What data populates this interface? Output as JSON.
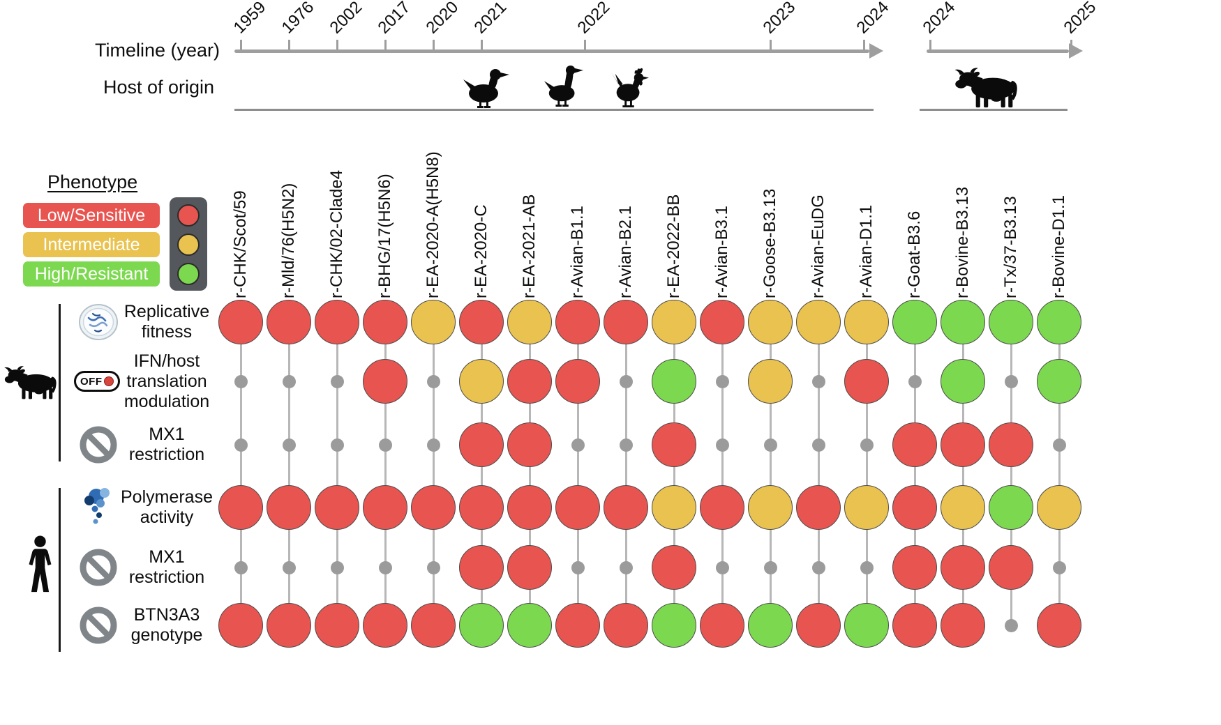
{
  "colors": {
    "red": "#e85450",
    "yellow": "#e9c24f",
    "green": "#7cd94f",
    "dot_gray": "#9b9b9b",
    "connector_gray": "#b7b7b7",
    "axis_gray": "#9e9e9e"
  },
  "icons": {
    "off_switch_label": "OFF"
  },
  "chart_data": {
    "type": "heatmap",
    "timeline": {
      "label": "Timeline (year)",
      "host_label": "Host of origin",
      "avian_axis": {
        "years": [
          "1959",
          "1976",
          "2002",
          "2017",
          "2020",
          "2021",
          "2022",
          "2023",
          "2024"
        ],
        "hosts": [
          "duck",
          "goose",
          "chicken"
        ]
      },
      "bovine_axis": {
        "years": [
          "2024",
          "2025"
        ],
        "hosts": [
          "cow"
        ]
      }
    },
    "legend": {
      "heading": "Phenotype",
      "entries": [
        {
          "label": "Low/Sensitive",
          "color": "red"
        },
        {
          "label": "Intermediate",
          "color": "yellow"
        },
        {
          "label": "High/Resistant",
          "color": "green"
        }
      ]
    },
    "columns": [
      "r-CHK/Scot/59",
      "r-Mld/76(H5N2)",
      "r-CHK/02-Clade4",
      "r-BHG/17(H5N6)",
      "r-EA-2020-A(H5N8)",
      "r-EA-2020-C",
      "r-EA-2021-AB",
      "r-Avian-B1.1",
      "r-Avian-B2.1",
      "r-EA-2022-BB",
      "r-Avian-B3.1",
      "r-Goose-B3.13",
      "r-Avian-EuDG",
      "r-Avian-D1.1",
      "r-Goat-B3.6",
      "r-Bovine-B3.13",
      "r-Tx/37-B3.13",
      "r-Bovine-D1.1"
    ],
    "row_groups": [
      {
        "host": "bovine",
        "rows": [
          {
            "label": "Replicative fitness",
            "icon": "petri-dish"
          },
          {
            "label": "IFN/host translation modulation",
            "icon": "off-switch"
          },
          {
            "label": "MX1 restriction",
            "icon": "no-entry"
          }
        ]
      },
      {
        "host": "human",
        "rows": [
          {
            "label": "Polymerase activity",
            "icon": "polymerase"
          },
          {
            "label": "MX1 restriction",
            "icon": "no-entry"
          },
          {
            "label": "BTN3A3 genotype",
            "icon": "no-entry"
          }
        ]
      }
    ],
    "values": [
      [
        "red",
        "red",
        "red",
        "red",
        "yellow",
        "red",
        "yellow",
        "red",
        "red",
        "yellow",
        "red",
        "yellow",
        "yellow",
        "yellow",
        "green",
        "green",
        "green",
        "green"
      ],
      [
        "dot",
        "dot",
        "dot",
        "red",
        "dot",
        "yellow",
        "red",
        "red",
        "dot",
        "green",
        "dot",
        "yellow",
        "dot",
        "red",
        "dot",
        "green",
        "dot",
        "green"
      ],
      [
        "dot",
        "dot",
        "dot",
        "dot",
        "dot",
        "red",
        "red",
        "dot",
        "dot",
        "red",
        "dot",
        "dot",
        "dot",
        "dot",
        "red",
        "red",
        "red",
        "dot"
      ],
      [
        "red",
        "red",
        "red",
        "red",
        "red",
        "red",
        "red",
        "red",
        "red",
        "yellow",
        "red",
        "yellow",
        "red",
        "yellow",
        "red",
        "yellow",
        "green",
        "yellow"
      ],
      [
        "dot",
        "dot",
        "dot",
        "dot",
        "dot",
        "red",
        "red",
        "dot",
        "dot",
        "red",
        "dot",
        "dot",
        "dot",
        "dot",
        "red",
        "red",
        "red",
        "dot"
      ],
      [
        "red",
        "red",
        "red",
        "red",
        "red",
        "green",
        "green",
        "red",
        "red",
        "green",
        "red",
        "green",
        "red",
        "green",
        "red",
        "red",
        "dot",
        "red"
      ]
    ]
  }
}
